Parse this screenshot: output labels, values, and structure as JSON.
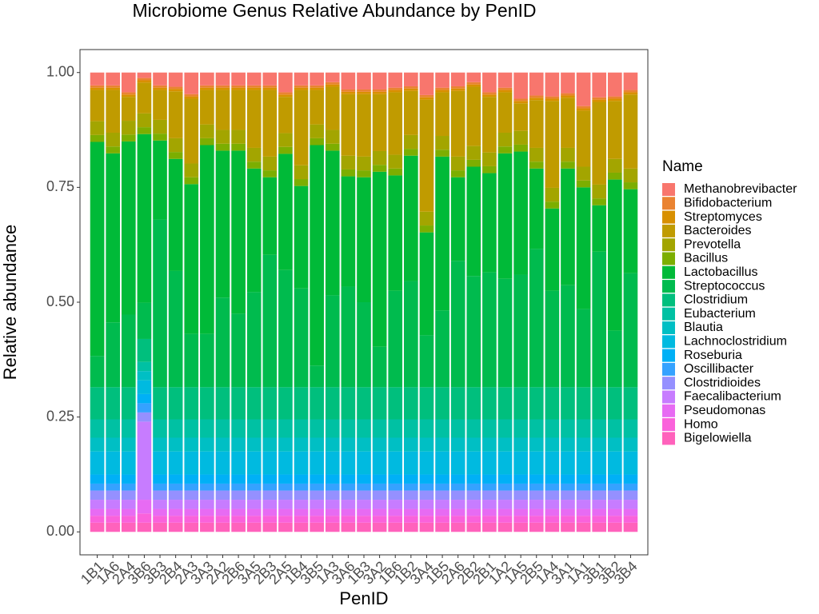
{
  "chart_data": {
    "type": "stacked_bar",
    "title": "Microbiome Genus Relative Abundance by PenID",
    "x_label": "PenID",
    "y_label": "Relative abundance",
    "legend_title": "Name",
    "categories": [
      "1B1",
      "1A6",
      "2A4",
      "3B6",
      "3B3",
      "2B4",
      "2A3",
      "3A3",
      "2A2",
      "2B6",
      "3A5",
      "2B3",
      "2A5",
      "1B4",
      "3B5",
      "1A3",
      "3A6",
      "1B3",
      "3A2",
      "1B6",
      "1B2",
      "3A4",
      "1B5",
      "2A6",
      "2B2",
      "2B1",
      "1A2",
      "1A5",
      "2B5",
      "1A4",
      "3A1",
      "1A1",
      "3B1",
      "3B2",
      "3B4"
    ],
    "ylim": [
      -0.05,
      1.05
    ],
    "yticks": [
      {
        "value": 0,
        "label": "0.00"
      },
      {
        "value": 0.25,
        "label": "0.25"
      },
      {
        "value": 0.5,
        "label": "0.50"
      },
      {
        "value": 0.75,
        "label": "0.75"
      },
      {
        "value": 1,
        "label": "1.00"
      }
    ],
    "grid": false,
    "legend": "right",
    "series": [
      {
        "name": "Methanobrevibacter",
        "color": "#F8766D",
        "values": [
          0.028,
          0.028,
          0.043,
          0.012,
          0.028,
          0.031,
          0.047,
          0.028,
          0.028,
          0.028,
          0.028,
          0.028,
          0.043,
          0.028,
          0.028,
          0.021,
          0.037,
          0.037,
          0.037,
          0.033,
          0.03,
          0.049,
          0.033,
          0.03,
          0.021,
          0.043,
          0.033,
          0.057,
          0.05,
          0.052,
          0.045,
          0.073,
          0.054,
          0.052,
          0.038
        ]
      },
      {
        "name": "Bifidobacterium",
        "color": "#EA8331",
        "values": [
          0.005,
          0.005,
          0.005,
          0.005,
          0.005,
          0.005,
          0.005,
          0.005,
          0.005,
          0.005,
          0.005,
          0.005,
          0.005,
          0.005,
          0.005,
          0.005,
          0.005,
          0.005,
          0.005,
          0.005,
          0.005,
          0.005,
          0.005,
          0.005,
          0.005,
          0.005,
          0.005,
          0.005,
          0.005,
          0.005,
          0.005,
          0.005,
          0.005,
          0.005,
          0.005
        ]
      },
      {
        "name": "Streptomyces",
        "color": "#D89000",
        "values": [
          0.005,
          0.005,
          0.005,
          0.005,
          0.005,
          0.005,
          0.005,
          0.005,
          0.005,
          0.005,
          0.005,
          0.005,
          0.005,
          0.005,
          0.005,
          0.005,
          0.005,
          0.005,
          0.005,
          0.005,
          0.005,
          0.005,
          0.005,
          0.005,
          0.005,
          0.005,
          0.005,
          0.005,
          0.005,
          0.005,
          0.005,
          0.005,
          0.005,
          0.005,
          0.005
        ]
      },
      {
        "name": "Bacteroides",
        "color": "#C09B00",
        "values": [
          0.068,
          0.093,
          0.052,
          0.067,
          0.065,
          0.102,
          0.141,
          0.075,
          0.087,
          0.087,
          0.126,
          0.145,
          0.079,
          0.164,
          0.075,
          0.094,
          0.134,
          0.136,
          0.124,
          0.136,
          0.096,
          0.244,
          0.095,
          0.143,
          0.129,
          0.121,
          0.088,
          0.06,
          0.104,
          0.189,
          0.109,
          0.122,
          0.18,
          0.126,
          0.161
        ]
      },
      {
        "name": "Prevotella",
        "color": "#A3A500",
        "values": [
          0.03,
          0.03,
          0.03,
          0.03,
          0.03,
          0.03,
          0.03,
          0.03,
          0.03,
          0.03,
          0.03,
          0.03,
          0.03,
          0.03,
          0.03,
          0.03,
          0.03,
          0.03,
          0.03,
          0.03,
          0.03,
          0.03,
          0.03,
          0.03,
          0.03,
          0.03,
          0.03,
          0.03,
          0.03,
          0.03,
          0.03,
          0.03,
          0.03,
          0.03,
          0.03
        ]
      },
      {
        "name": "Bacillus",
        "color": "#7CAE00",
        "values": [
          0.015,
          0.015,
          0.015,
          0.015,
          0.015,
          0.015,
          0.015,
          0.015,
          0.015,
          0.015,
          0.015,
          0.015,
          0.015,
          0.015,
          0.015,
          0.015,
          0.015,
          0.015,
          0.015,
          0.015,
          0.015,
          0.015,
          0.015,
          0.015,
          0.015,
          0.015,
          0.015,
          0.015,
          0.015,
          0.015,
          0.015,
          0.015,
          0.015,
          0.015,
          0.015
        ]
      },
      {
        "name": "Lactobacillus",
        "color": "#00BA38",
        "values": [
          0.466,
          0.368,
          0.377,
          0.367,
          0.172,
          0.244,
          0.326,
          0.411,
          0.32,
          0.355,
          0.269,
          0.169,
          0.253,
          0.223,
          0.48,
          0.315,
          0.24,
          0.272,
          0.381,
          0.251,
          0.273,
          0.224,
          0.335,
          0.182,
          0.238,
          0.216,
          0.273,
          0.268,
          0.175,
          0.179,
          0.254,
          0.265,
          0.101,
          0.329,
          0.183
        ]
      },
      {
        "name": "Streptococcus",
        "color": "#00BB4E",
        "values": [
          0.068,
          0.141,
          0.158,
          0.079,
          0.365,
          0.253,
          0.116,
          0.116,
          0.195,
          0.16,
          0.207,
          0.288,
          0.255,
          0.215,
          0.047,
          0.2,
          0.219,
          0.185,
          0.088,
          0.21,
          0.231,
          0.113,
          0.167,
          0.275,
          0.242,
          0.25,
          0.236,
          0.245,
          0.301,
          0.21,
          0.222,
          0.17,
          0.295,
          0.123,
          0.248
        ]
      },
      {
        "name": "Clostridium",
        "color": "#00BF7D",
        "values": [
          0.07,
          0.07,
          0.07,
          0.05,
          0.07,
          0.07,
          0.07,
          0.07,
          0.07,
          0.07,
          0.07,
          0.07,
          0.07,
          0.07,
          0.07,
          0.07,
          0.07,
          0.07,
          0.07,
          0.07,
          0.07,
          0.07,
          0.07,
          0.07,
          0.07,
          0.07,
          0.07,
          0.07,
          0.07,
          0.07,
          0.07,
          0.07,
          0.07,
          0.07,
          0.07
        ]
      },
      {
        "name": "Eubacterium",
        "color": "#00C1A3",
        "values": [
          0.04,
          0.04,
          0.04,
          0.02,
          0.04,
          0.04,
          0.04,
          0.04,
          0.04,
          0.04,
          0.04,
          0.04,
          0.04,
          0.04,
          0.04,
          0.04,
          0.04,
          0.04,
          0.04,
          0.04,
          0.04,
          0.04,
          0.04,
          0.04,
          0.04,
          0.04,
          0.04,
          0.04,
          0.04,
          0.04,
          0.04,
          0.04,
          0.04,
          0.04,
          0.04
        ]
      },
      {
        "name": "Blautia",
        "color": "#00BFC4",
        "values": [
          0.03,
          0.03,
          0.03,
          0.02,
          0.03,
          0.03,
          0.03,
          0.03,
          0.03,
          0.03,
          0.03,
          0.03,
          0.03,
          0.03,
          0.03,
          0.03,
          0.03,
          0.03,
          0.03,
          0.03,
          0.03,
          0.03,
          0.03,
          0.03,
          0.03,
          0.03,
          0.03,
          0.03,
          0.03,
          0.03,
          0.03,
          0.03,
          0.03,
          0.03,
          0.03
        ]
      },
      {
        "name": "Lachnoclostridium",
        "color": "#00BAE0",
        "values": [
          0.05,
          0.05,
          0.05,
          0.03,
          0.05,
          0.05,
          0.05,
          0.05,
          0.05,
          0.05,
          0.05,
          0.05,
          0.05,
          0.05,
          0.05,
          0.05,
          0.05,
          0.05,
          0.05,
          0.05,
          0.05,
          0.05,
          0.05,
          0.05,
          0.05,
          0.05,
          0.05,
          0.05,
          0.05,
          0.05,
          0.05,
          0.05,
          0.05,
          0.05,
          0.05
        ]
      },
      {
        "name": "Roseburia",
        "color": "#00B0F6",
        "values": [
          0.02,
          0.02,
          0.02,
          0.02,
          0.02,
          0.02,
          0.02,
          0.02,
          0.02,
          0.02,
          0.02,
          0.02,
          0.02,
          0.02,
          0.02,
          0.02,
          0.02,
          0.02,
          0.02,
          0.02,
          0.02,
          0.02,
          0.02,
          0.02,
          0.02,
          0.02,
          0.02,
          0.02,
          0.02,
          0.02,
          0.02,
          0.02,
          0.02,
          0.02,
          0.02
        ]
      },
      {
        "name": "Oscillibacter",
        "color": "#35A2FF",
        "values": [
          0.015,
          0.015,
          0.015,
          0.02,
          0.015,
          0.015,
          0.015,
          0.015,
          0.015,
          0.015,
          0.015,
          0.015,
          0.015,
          0.015,
          0.015,
          0.015,
          0.015,
          0.015,
          0.015,
          0.015,
          0.015,
          0.015,
          0.015,
          0.015,
          0.015,
          0.015,
          0.015,
          0.015,
          0.015,
          0.015,
          0.015,
          0.015,
          0.015,
          0.015,
          0.015
        ]
      },
      {
        "name": "Clostridioides",
        "color": "#9590FF",
        "values": [
          0.02,
          0.02,
          0.02,
          0.02,
          0.02,
          0.02,
          0.02,
          0.02,
          0.02,
          0.02,
          0.02,
          0.02,
          0.02,
          0.02,
          0.02,
          0.02,
          0.02,
          0.02,
          0.02,
          0.02,
          0.02,
          0.02,
          0.02,
          0.02,
          0.02,
          0.02,
          0.02,
          0.02,
          0.02,
          0.02,
          0.02,
          0.02,
          0.02,
          0.02,
          0.02
        ]
      },
      {
        "name": "Faecalibacterium",
        "color": "#C77CFF",
        "values": [
          0.02,
          0.02,
          0.02,
          0.17,
          0.02,
          0.02,
          0.02,
          0.02,
          0.02,
          0.02,
          0.02,
          0.02,
          0.02,
          0.02,
          0.02,
          0.02,
          0.02,
          0.02,
          0.02,
          0.02,
          0.02,
          0.02,
          0.02,
          0.02,
          0.02,
          0.02,
          0.02,
          0.02,
          0.02,
          0.02,
          0.02,
          0.02,
          0.02,
          0.02,
          0.02
        ]
      },
      {
        "name": "Pseudomonas",
        "color": "#E76BF3",
        "values": [
          0.015,
          0.015,
          0.015,
          0.03,
          0.015,
          0.015,
          0.015,
          0.015,
          0.015,
          0.015,
          0.015,
          0.015,
          0.015,
          0.015,
          0.015,
          0.015,
          0.015,
          0.015,
          0.015,
          0.015,
          0.015,
          0.015,
          0.015,
          0.015,
          0.015,
          0.015,
          0.015,
          0.015,
          0.015,
          0.015,
          0.015,
          0.015,
          0.015,
          0.015,
          0.015
        ]
      },
      {
        "name": "Homo",
        "color": "#FA62DB",
        "values": [
          0.015,
          0.015,
          0.015,
          0.02,
          0.015,
          0.015,
          0.015,
          0.015,
          0.015,
          0.015,
          0.015,
          0.015,
          0.015,
          0.015,
          0.015,
          0.015,
          0.015,
          0.015,
          0.015,
          0.015,
          0.015,
          0.015,
          0.015,
          0.015,
          0.015,
          0.015,
          0.015,
          0.015,
          0.015,
          0.015,
          0.015,
          0.015,
          0.015,
          0.015,
          0.015
        ]
      },
      {
        "name": "Bigelowiella",
        "color": "#FF62BC",
        "values": [
          0.02,
          0.02,
          0.02,
          0.02,
          0.02,
          0.02,
          0.02,
          0.02,
          0.02,
          0.02,
          0.02,
          0.02,
          0.02,
          0.02,
          0.02,
          0.02,
          0.02,
          0.02,
          0.02,
          0.02,
          0.02,
          0.02,
          0.02,
          0.02,
          0.02,
          0.02,
          0.02,
          0.02,
          0.02,
          0.02,
          0.02,
          0.02,
          0.02,
          0.02,
          0.02
        ]
      }
    ]
  }
}
